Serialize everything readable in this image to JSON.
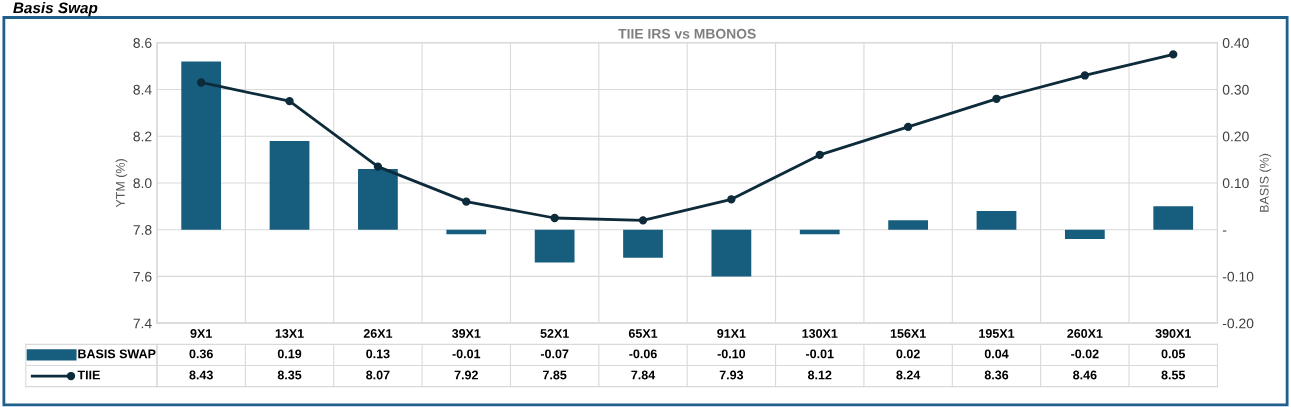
{
  "chart_data": {
    "type": "bar",
    "title": "TIIE IRS vs MBONOS",
    "annotations": [
      "Basis Swap"
    ],
    "categories": [
      "9X1",
      "13X1",
      "26X1",
      "39X1",
      "52X1",
      "65X1",
      "91X1",
      "130X1",
      "156X1",
      "195X1",
      "260X1",
      "390X1"
    ],
    "series": [
      {
        "name": "BASIS SWAP",
        "axis": "y2",
        "color": "#175e7e",
        "values": [
          0.36,
          0.19,
          0.13,
          -0.01,
          -0.07,
          -0.06,
          -0.1,
          -0.01,
          0.02,
          0.04,
          -0.02,
          0.05
        ],
        "value_labels": [
          "0.36",
          "0.19",
          "0.13",
          "-0.01",
          "-0.07",
          "-0.06",
          "-0.10",
          "-0.01",
          "0.02",
          "0.04",
          "-0.02",
          "0.05"
        ]
      },
      {
        "name": "TIIE",
        "type": "line",
        "color": "#0d2b3a",
        "marker": "circle",
        "values": [
          8.43,
          8.35,
          8.07,
          7.92,
          7.85,
          7.84,
          7.93,
          8.12,
          8.24,
          8.36,
          8.46,
          8.55
        ],
        "value_labels": [
          "8.43",
          "8.35",
          "8.07",
          "7.92",
          "7.85",
          "7.84",
          "7.93",
          "8.12",
          "8.24",
          "8.36",
          "8.46",
          "8.55"
        ]
      }
    ],
    "ylabel": "YTM (%)",
    "y2label": "BASIS (%)",
    "ylim": [
      7.4,
      8.6
    ],
    "yticks": [
      {
        "value": 7.4,
        "label": "7.4"
      },
      {
        "value": 7.6,
        "label": "7.6"
      },
      {
        "value": 7.8,
        "label": "7.8"
      },
      {
        "value": 8.0,
        "label": "8.0"
      },
      {
        "value": 8.2,
        "label": "8.2"
      },
      {
        "value": 8.4,
        "label": "8.4"
      },
      {
        "value": 8.6,
        "label": "8.6"
      }
    ],
    "y2lim": [
      -0.2,
      0.4
    ],
    "y2ticks": [
      {
        "value": -0.2,
        "label": "-0.20"
      },
      {
        "value": -0.1,
        "label": "-0.10"
      },
      {
        "value": 0,
        "label": "-"
      },
      {
        "value": 0.1,
        "label": "0.10"
      },
      {
        "value": 0.2,
        "label": "0.20"
      },
      {
        "value": 0.3,
        "label": "0.30"
      },
      {
        "value": 0.4,
        "label": "0.40"
      }
    ],
    "grid": true,
    "legend": "bottom"
  }
}
